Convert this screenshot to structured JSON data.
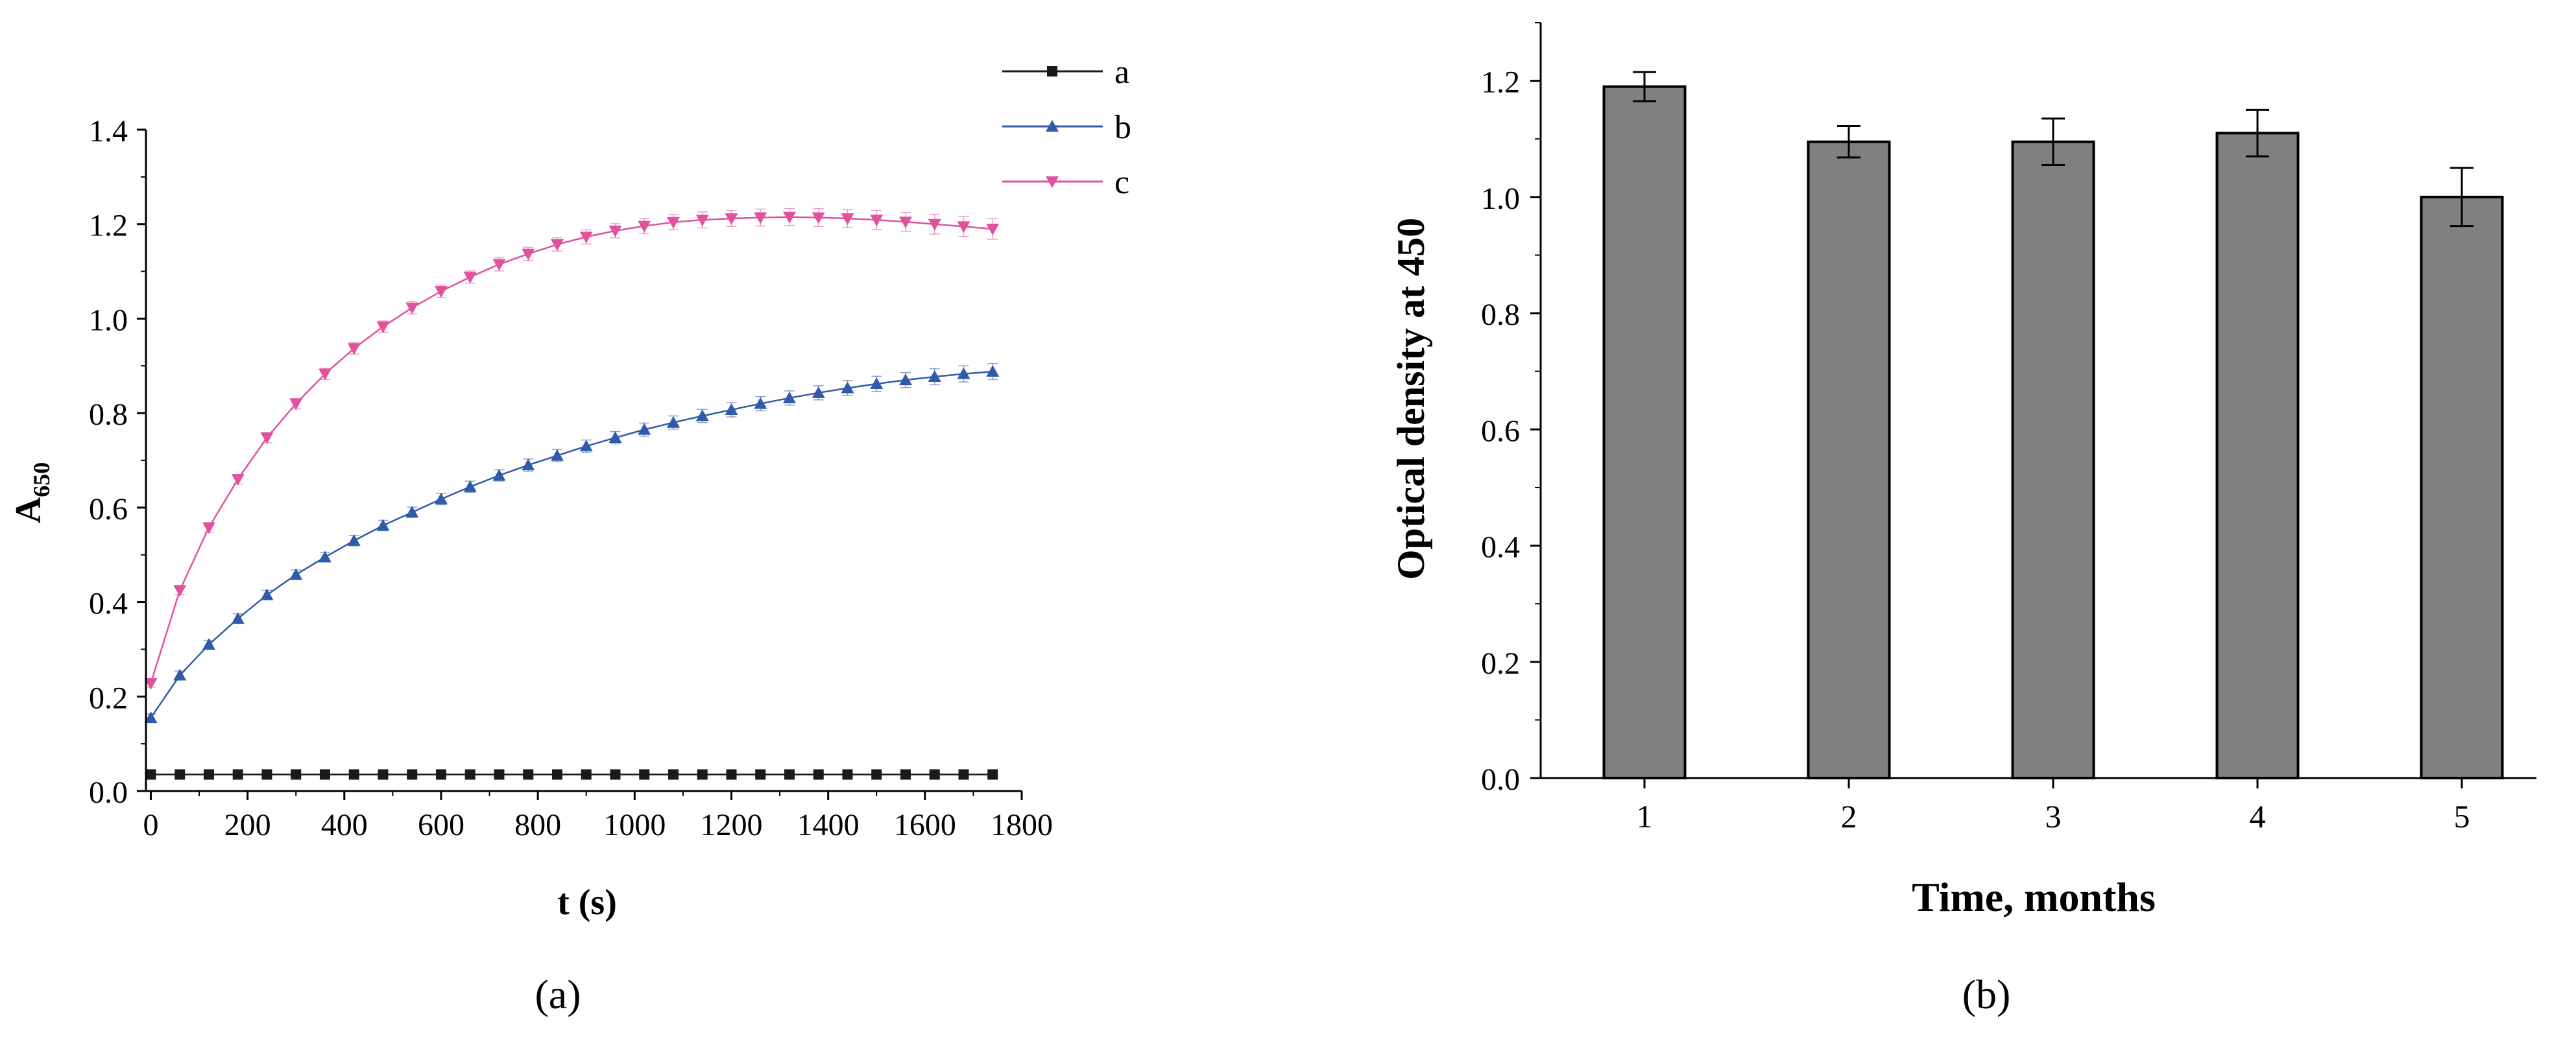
{
  "chart_data": [
    {
      "type": "line",
      "panel": "a",
      "caption": "(a)",
      "xlabel": "t (s)",
      "ylabel_main": "A",
      "ylabel_sub": "650",
      "xlim": [
        -10,
        1800
      ],
      "ylim": [
        0,
        1.4
      ],
      "xticks": [
        "0",
        "200",
        "400",
        "600",
        "800",
        "1000",
        "1200",
        "1400",
        "1600",
        "1800"
      ],
      "yticks": [
        "0.0",
        "0.2",
        "0.4",
        "0.6",
        "0.8",
        "1.0",
        "1.2",
        "1.4"
      ],
      "legend_position": "top-right",
      "x": [
        0,
        60,
        120,
        180,
        240,
        300,
        360,
        420,
        480,
        540,
        600,
        660,
        720,
        780,
        840,
        900,
        960,
        1020,
        1080,
        1140,
        1200,
        1260,
        1320,
        1380,
        1440,
        1500,
        1560,
        1620,
        1680,
        1740
      ],
      "series": [
        {
          "name": "a",
          "color": "#1a1a1a",
          "marker": "square",
          "values": [
            0.035,
            0.035,
            0.035,
            0.035,
            0.035,
            0.035,
            0.035,
            0.035,
            0.035,
            0.035,
            0.035,
            0.035,
            0.035,
            0.035,
            0.035,
            0.035,
            0.035,
            0.035,
            0.035,
            0.035,
            0.035,
            0.035,
            0.035,
            0.035,
            0.035,
            0.035,
            0.035,
            0.035,
            0.035,
            0.035
          ],
          "error": [
            0.003,
            0.003,
            0.003,
            0.003,
            0.003,
            0.003,
            0.003,
            0.003,
            0.003,
            0.003,
            0.003,
            0.003,
            0.003,
            0.003,
            0.003,
            0.003,
            0.003,
            0.003,
            0.003,
            0.003,
            0.003,
            0.003,
            0.003,
            0.003,
            0.003,
            0.003,
            0.003,
            0.003,
            0.003,
            0.003
          ]
        },
        {
          "name": "b",
          "color": "#2f5ba8",
          "marker": "triangle-up",
          "values": [
            0.155,
            0.245,
            0.31,
            0.365,
            0.415,
            0.458,
            0.495,
            0.53,
            0.562,
            0.59,
            0.618,
            0.644,
            0.668,
            0.69,
            0.71,
            0.73,
            0.748,
            0.765,
            0.78,
            0.794,
            0.807,
            0.82,
            0.832,
            0.843,
            0.853,
            0.862,
            0.87,
            0.877,
            0.883,
            0.888
          ],
          "error": [
            0.008,
            0.009,
            0.009,
            0.01,
            0.01,
            0.01,
            0.01,
            0.011,
            0.011,
            0.011,
            0.012,
            0.012,
            0.012,
            0.013,
            0.013,
            0.013,
            0.013,
            0.014,
            0.014,
            0.014,
            0.015,
            0.015,
            0.015,
            0.015,
            0.016,
            0.016,
            0.016,
            0.017,
            0.017,
            0.017
          ]
        },
        {
          "name": "c",
          "color": "#e0529c",
          "marker": "triangle-down",
          "values": [
            0.228,
            0.425,
            0.558,
            0.66,
            0.748,
            0.82,
            0.883,
            0.937,
            0.983,
            1.023,
            1.058,
            1.088,
            1.115,
            1.137,
            1.157,
            1.173,
            1.186,
            1.196,
            1.204,
            1.209,
            1.212,
            1.214,
            1.215,
            1.214,
            1.212,
            1.209,
            1.205,
            1.2,
            1.195,
            1.19
          ],
          "error": [
            0.008,
            0.009,
            0.01,
            0.01,
            0.011,
            0.011,
            0.012,
            0.012,
            0.012,
            0.013,
            0.013,
            0.013,
            0.014,
            0.014,
            0.014,
            0.015,
            0.015,
            0.016,
            0.016,
            0.017,
            0.017,
            0.018,
            0.018,
            0.019,
            0.019,
            0.02,
            0.02,
            0.021,
            0.021,
            0.022
          ]
        }
      ]
    },
    {
      "type": "bar",
      "panel": "b",
      "caption": "(b)",
      "xlabel": "Time, months",
      "ylabel": "Optical density at 450",
      "ylim": [
        0,
        1.3
      ],
      "yticks": [
        "0.0",
        "0.2",
        "0.4",
        "0.6",
        "0.8",
        "1.0",
        "1.2"
      ],
      "categories": [
        "1",
        "2",
        "3",
        "4",
        "5"
      ],
      "values": [
        1.19,
        1.095,
        1.095,
        1.11,
        1.0
      ],
      "error": [
        0.025,
        0.027,
        0.04,
        0.04,
        0.05
      ],
      "bar_color": "#808080",
      "edge_color": "#000000"
    }
  ]
}
